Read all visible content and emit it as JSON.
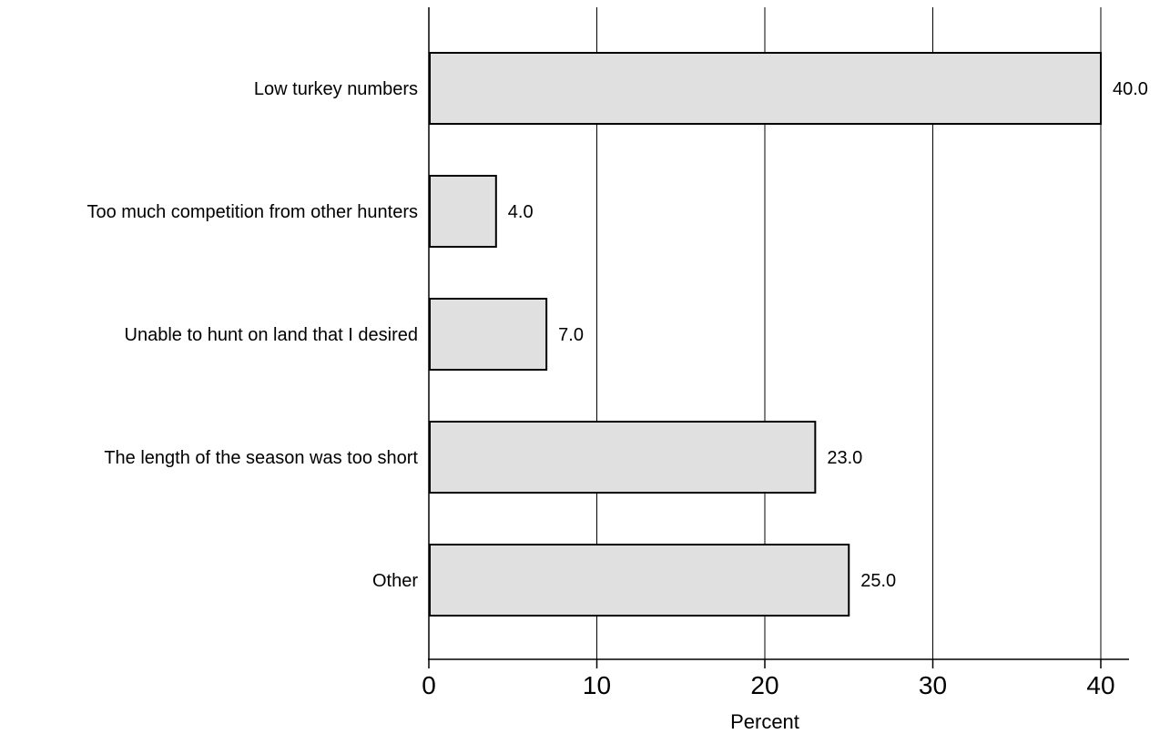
{
  "chart_data": {
    "type": "bar",
    "orientation": "horizontal",
    "categories": [
      "Low turkey numbers",
      "Too much competition from other hunters",
      "Unable to hunt on land that I desired",
      "The length of the season was too short",
      "Other"
    ],
    "values": [
      40.0,
      4.0,
      7.0,
      23.0,
      25.0
    ],
    "value_labels": [
      "40.0",
      "4.0",
      "7.0",
      "23.0",
      "25.0"
    ],
    "title": "",
    "xlabel": "Percent",
    "ylabel": "",
    "xlim": [
      0,
      40
    ],
    "x_ticks": [
      0,
      10,
      20,
      30,
      40
    ],
    "x_tick_labels": [
      "0",
      "10",
      "20",
      "30",
      "40"
    ],
    "grid": "vertical",
    "legend": "none",
    "colors": {
      "bar_fill": "#e0e0e0",
      "bar_stroke": "#000000",
      "grid": "#000000",
      "axis": "#000000"
    }
  }
}
